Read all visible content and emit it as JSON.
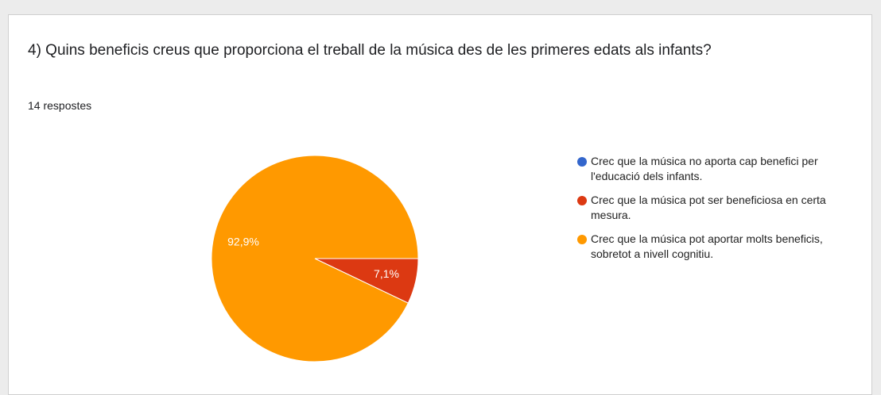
{
  "chart_data": {
    "type": "pie",
    "title": "4) Quins beneficis creus que proporciona el treball de la música des de les primeres edats als infants?",
    "subtitle": "14 respostes",
    "categories": [
      "Crec que la música no aporta cap benefici per l'educació dels infants.",
      "Crec que la música pot ser beneficiosa en certa mesura.",
      "Crec que la música pot aportar molts beneficis, sobretot a nivell cognitiu."
    ],
    "values": [
      0,
      7.1,
      92.9
    ],
    "value_labels": [
      null,
      "7,1%",
      "92,9%"
    ],
    "colors": [
      "#3366cc",
      "#dc3912",
      "#ff9900"
    ],
    "legend": "right"
  }
}
